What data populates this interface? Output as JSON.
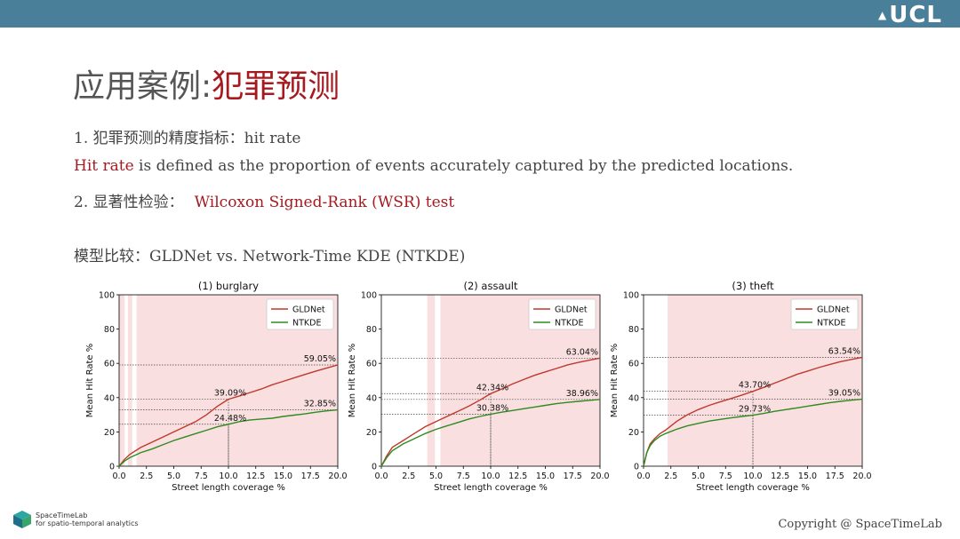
{
  "header": {
    "logo_text": "UCL"
  },
  "title": {
    "main": "应用案例",
    "separator": ":",
    "highlight": "犯罪预测"
  },
  "line1": "1. 犯罪预测的精度指标：hit rate",
  "line2": {
    "term": "Hit rate",
    "rest": " is defined as the proportion of events accurately captured by the predicted locations."
  },
  "line3": {
    "prefix": "2. 显著性检验：",
    "test": "Wilcoxon Signed-Rank (WSR) test"
  },
  "line4": "模型比较：GLDNet vs. Network-Time KDE (NTKDE)",
  "footer": {
    "brand": "SpaceTimeLab",
    "brand_sub": "for spatio-temporal analytics",
    "copyright": "Copyright @ SpaceTimeLab"
  },
  "chart_data": [
    {
      "type": "line",
      "title": "(1) burglary",
      "xlabel": "Street length coverage %",
      "ylabel": "Mean Hit Rate %",
      "xlim": [
        0,
        20
      ],
      "ylim": [
        0,
        100
      ],
      "xticks": [
        "0.0",
        "2.5",
        "5.0",
        "7.5",
        "10.0",
        "12.5",
        "15.0",
        "17.5",
        "20.0"
      ],
      "yticks": [
        "0",
        "20",
        "40",
        "60",
        "80",
        "100"
      ],
      "legend": "top-right",
      "significant_bands": [
        [
          0,
          0.5
        ],
        [
          0.8,
          1.2
        ],
        [
          1.6,
          20
        ]
      ],
      "series": [
        {
          "name": "GLDNet",
          "color": "#c0392b",
          "x": [
            0,
            0.5,
            1,
            2,
            3,
            4,
            5,
            6,
            7,
            8,
            9,
            10,
            11,
            12,
            13,
            14,
            15,
            16,
            17,
            18,
            19,
            20
          ],
          "y": [
            0,
            4,
            7,
            11,
            14,
            17,
            20,
            23,
            26,
            30,
            35,
            39.09,
            41,
            43,
            45,
            47.5,
            49.5,
            51.5,
            53.5,
            55.5,
            57.3,
            59.05
          ]
        },
        {
          "name": "NTKDE",
          "color": "#2e8b20",
          "x": [
            0,
            0.5,
            1,
            2,
            3,
            4,
            5,
            6,
            7,
            8,
            9,
            10,
            11,
            12,
            13,
            14,
            15,
            16,
            17,
            18,
            19,
            20
          ],
          "y": [
            0,
            3,
            5,
            8,
            10,
            12.5,
            15,
            17,
            19,
            21,
            23,
            24.48,
            26,
            27,
            27.5,
            28,
            29,
            29.8,
            30.5,
            31.5,
            32.3,
            32.85
          ]
        }
      ],
      "annotations": [
        {
          "text": "59.05%",
          "x": 20,
          "y": 59.05
        },
        {
          "text": "39.09%",
          "x": 10,
          "y": 39.09
        },
        {
          "text": "32.85%",
          "x": 20,
          "y": 32.85
        },
        {
          "text": "24.48%",
          "x": 10,
          "y": 24.48
        }
      ]
    },
    {
      "type": "line",
      "title": "(2) assault",
      "xlabel": "Street length coverage %",
      "ylabel": "Mean Hit Rate %",
      "xlim": [
        0,
        20
      ],
      "ylim": [
        0,
        100
      ],
      "xticks": [
        "0.0",
        "2.5",
        "5.0",
        "7.5",
        "10.0",
        "12.5",
        "15.0",
        "17.5",
        "20.0"
      ],
      "yticks": [
        "0",
        "20",
        "40",
        "60",
        "80",
        "100"
      ],
      "legend": "top-right",
      "significant_bands": [
        [
          4.2,
          4.9
        ],
        [
          5.4,
          20
        ]
      ],
      "series": [
        {
          "name": "GLDNet",
          "color": "#c0392b",
          "x": [
            0,
            0.5,
            1,
            2,
            3,
            4,
            5,
            6,
            7,
            8,
            9,
            10,
            11,
            12,
            13,
            14,
            15,
            16,
            17,
            18,
            19,
            20
          ],
          "y": [
            0,
            6,
            11,
            15,
            19,
            23,
            26,
            29,
            32,
            35,
            38.5,
            42.34,
            45,
            48,
            50.5,
            53,
            55,
            57,
            59,
            60.5,
            61.8,
            63.04
          ]
        },
        {
          "name": "NTKDE",
          "color": "#2e8b20",
          "x": [
            0,
            0.5,
            1,
            2,
            3,
            4,
            5,
            6,
            7,
            8,
            9,
            10,
            11,
            12,
            13,
            14,
            15,
            16,
            17,
            18,
            19,
            20
          ],
          "y": [
            0,
            5,
            9,
            13,
            16,
            19,
            21.5,
            23.5,
            25.5,
            27.5,
            29,
            30.38,
            31.5,
            32.5,
            33.5,
            34.5,
            35.5,
            36.5,
            37.2,
            37.8,
            38.4,
            38.96
          ]
        }
      ],
      "annotations": [
        {
          "text": "63.04%",
          "x": 20,
          "y": 63.04
        },
        {
          "text": "42.34%",
          "x": 10,
          "y": 42.34
        },
        {
          "text": "38.96%",
          "x": 20,
          "y": 38.96
        },
        {
          "text": "30.38%",
          "x": 10,
          "y": 30.38
        }
      ]
    },
    {
      "type": "line",
      "title": "(3) theft",
      "xlabel": "Street length coverage %",
      "ylabel": "Mean Hit Rate %",
      "xlim": [
        0,
        20
      ],
      "ylim": [
        0,
        100
      ],
      "xticks": [
        "0.0",
        "2.5",
        "5.0",
        "7.5",
        "10.0",
        "12.5",
        "15.0",
        "17.5",
        "20.0"
      ],
      "yticks": [
        "0",
        "20",
        "40",
        "60",
        "80",
        "100"
      ],
      "legend": "top-right",
      "significant_bands": [
        [
          2.2,
          20
        ]
      ],
      "series": [
        {
          "name": "GLDNet",
          "color": "#c0392b",
          "x": [
            0,
            0.3,
            0.6,
            1,
            1.5,
            2,
            3,
            4,
            5,
            6,
            7,
            8,
            9,
            10,
            11,
            12,
            13,
            14,
            15,
            16,
            17,
            18,
            19,
            20
          ],
          "y": [
            0,
            8,
            13,
            16,
            19,
            21,
            26,
            30,
            33,
            35.5,
            37.5,
            39.5,
            41.5,
            43.7,
            46,
            48.5,
            51,
            53.5,
            55.5,
            57.5,
            59.3,
            61,
            62.3,
            63.54
          ]
        },
        {
          "name": "NTKDE",
          "color": "#2e8b20",
          "x": [
            0,
            0.3,
            0.6,
            1,
            1.5,
            2,
            3,
            4,
            5,
            6,
            7,
            8,
            9,
            10,
            11,
            12,
            13,
            14,
            15,
            16,
            17,
            18,
            19,
            20
          ],
          "y": [
            0,
            8,
            12,
            15,
            17.5,
            19,
            21.5,
            23.5,
            25,
            26.3,
            27.3,
            28.2,
            29,
            29.73,
            30.8,
            32,
            33,
            34,
            35,
            36,
            37,
            37.8,
            38.5,
            39.05
          ]
        }
      ],
      "annotations": [
        {
          "text": "63.54%",
          "x": 20,
          "y": 63.54
        },
        {
          "text": "43.70%",
          "x": 10,
          "y": 43.7
        },
        {
          "text": "39.05%",
          "x": 20,
          "y": 39.05
        },
        {
          "text": "29.73%",
          "x": 10,
          "y": 29.73
        }
      ]
    }
  ]
}
